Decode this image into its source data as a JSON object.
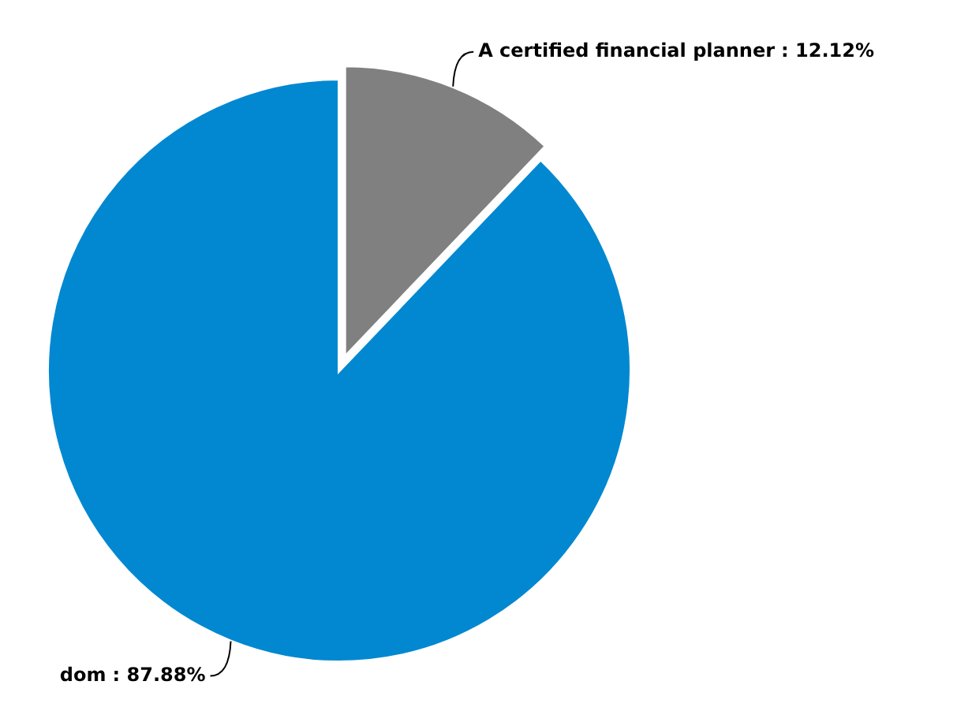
{
  "chart_data": {
    "type": "pie",
    "categories": [
      "A certified financial planner",
      "dom"
    ],
    "values": [
      12.12,
      87.88
    ],
    "colors": [
      "#808080",
      "#0288d1"
    ],
    "value_labels": [
      ": 12.12%",
      ": 87.88%"
    ]
  }
}
